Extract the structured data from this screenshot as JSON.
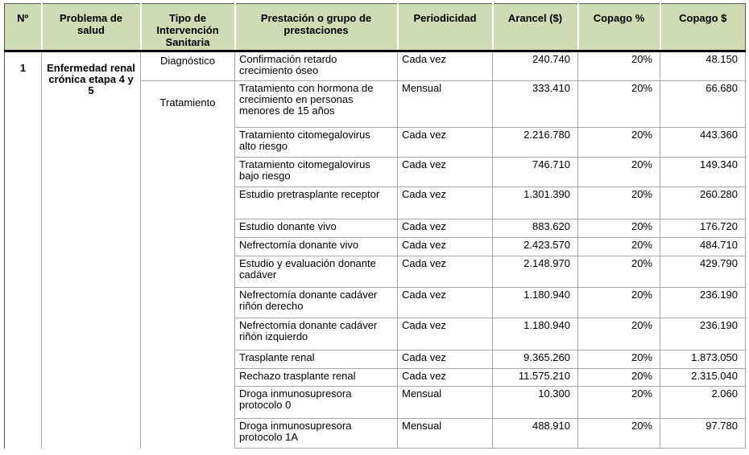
{
  "colors": {
    "header_bg": "#cddcb2",
    "header_rule": "#000000",
    "grid_line": "#a6a6a6",
    "outer_border": "#595959"
  },
  "table": {
    "headers": [
      "Nº",
      "Problema de salud",
      "Tipo de Intervención Sanitaria",
      "Prestación o grupo de prestaciones",
      "Periodicidad",
      "Arancel ($)",
      "Copago %",
      "Copago $"
    ],
    "group": {
      "numero": "1",
      "problema_de_salud": "Enfermedad renal crónica etapa 4 y 5",
      "tipo_diagnostico": "Diagnóstico",
      "tipo_tratamiento": "Tratamiento"
    },
    "rows": [
      {
        "prestacion": "Confirmación retardo crecimiento óseo",
        "periodicidad": "Cada vez",
        "arancel": "240.740",
        "copago_pct": "20%",
        "copago_monto": "48.150"
      },
      {
        "prestacion": "Tratamiento con hormona de crecimiento en personas menores de 15 años",
        "periodicidad": "Mensual",
        "arancel": "333.410",
        "copago_pct": "20%",
        "copago_monto": "66.680"
      },
      {
        "prestacion": "Tratamiento citomegalovirus alto riesgo",
        "periodicidad": "Cada vez",
        "arancel": "2.216.780",
        "copago_pct": "20%",
        "copago_monto": "443.360"
      },
      {
        "prestacion": "Tratamiento citomegalovirus bajo riesgo",
        "periodicidad": "Cada vez",
        "arancel": "746.710",
        "copago_pct": "20%",
        "copago_monto": "149.340"
      },
      {
        "prestacion": "Estudio pretrasplante receptor",
        "periodicidad": "Cada vez",
        "arancel": "1.301.390",
        "copago_pct": "20%",
        "copago_monto": "260.280"
      },
      {
        "prestacion": "Estudio donante vivo",
        "periodicidad": "Cada vez",
        "arancel": "883.620",
        "copago_pct": "20%",
        "copago_monto": "176.720"
      },
      {
        "prestacion": "Nefrectomía donante vivo",
        "periodicidad": "Cada vez",
        "arancel": "2.423.570",
        "copago_pct": "20%",
        "copago_monto": "484.710"
      },
      {
        "prestacion": "Estudio y evaluación donante cadáver",
        "periodicidad": "Cada vez",
        "arancel": "2.148.970",
        "copago_pct": "20%",
        "copago_monto": "429.790"
      },
      {
        "prestacion": "Nefrectomía donante cadáver riñón derecho",
        "periodicidad": "Cada vez",
        "arancel": "1.180.940",
        "copago_pct": "20%",
        "copago_monto": "236.190"
      },
      {
        "prestacion": "Nefrectomía donante cadáver riñón izquierdo",
        "periodicidad": "Cada vez",
        "arancel": "1.180.940",
        "copago_pct": "20%",
        "copago_monto": "236.190"
      },
      {
        "prestacion": "Trasplante renal",
        "periodicidad": "Cada vez",
        "arancel": "9.365.260",
        "copago_pct": "20%",
        "copago_monto": "1.873.050"
      },
      {
        "prestacion": "Rechazo trasplante renal",
        "periodicidad": "Cada vez",
        "arancel": "11.575.210",
        "copago_pct": "20%",
        "copago_monto": "2.315.040"
      },
      {
        "prestacion": "Droga inmunosupresora protocolo 0",
        "periodicidad": "Mensual",
        "arancel": "10.300",
        "copago_pct": "20%",
        "copago_monto": "2.060"
      },
      {
        "prestacion": "Droga inmunosupresora protocolo 1A",
        "periodicidad": "Mensual",
        "arancel": "488.910",
        "copago_pct": "20%",
        "copago_monto": "97.780"
      }
    ]
  }
}
